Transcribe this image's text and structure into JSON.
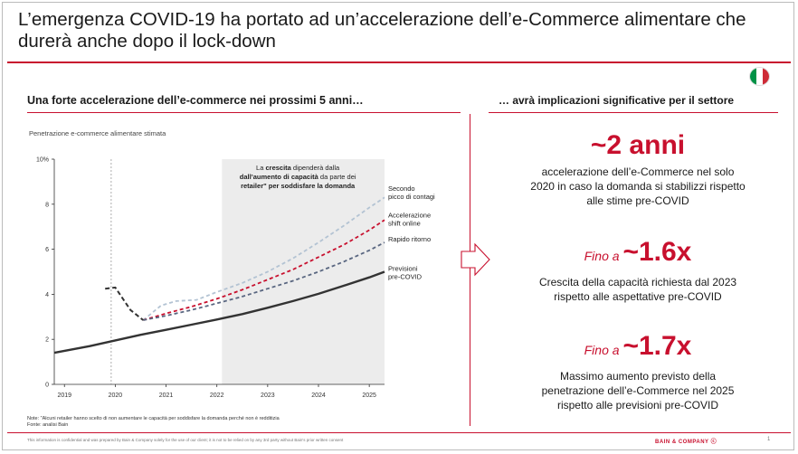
{
  "title": "L’emergenza COVID-19 ha portato ad un’accelerazione dell’e-Commerce alimentare che durerà anche dopo il lock-down",
  "flag_colors": [
    "#009246",
    "#ffffff",
    "#ce2b37"
  ],
  "left_heading": "Una forte accelerazione dell’e-commerce nei prossimi 5 anni…",
  "right_heading": "… avrà implicazioni significative per il settore",
  "chart_subtitle": "Penetrazione e-commerce alimentare stimata",
  "chart_data": {
    "type": "line",
    "ylim": [
      0,
      10
    ],
    "yticks": [
      "0",
      "2",
      "4",
      "6",
      "8",
      "10%"
    ],
    "xlim": [
      2018.8,
      2025.3
    ],
    "xticks": [
      2019,
      2020,
      2021,
      2022,
      2023,
      2024,
      2025
    ],
    "xtick_labels": [
      "2019",
      "2020",
      "2021",
      "2022",
      "2023",
      "2024",
      "2025"
    ],
    "vline_x": 2019.92,
    "shaded_range": [
      2022.1,
      2025.3
    ],
    "shaded_note": {
      "line1_pre": "La ",
      "line1_bold": "crescita",
      "line1_post": " dipenderà dalla",
      "line2_bold": "dall’aumento di capacità",
      "line2_post": " da parte dei",
      "line3_bold": "retailer\" per soddisfare la domanda"
    },
    "colors": {
      "spike": "#333333",
      "shade": "#ececec"
    },
    "spike": {
      "x": [
        2019.8,
        2020.0,
        2020.3,
        2020.55
      ],
      "y": [
        4.25,
        4.3,
        3.3,
        2.85
      ]
    },
    "series": [
      {
        "name": "Previsioni pre-COVID",
        "style": "solid",
        "color": "#333333",
        "x": [
          2018.8,
          2019.5,
          2020.0,
          2020.5,
          2021.0,
          2021.5,
          2022.0,
          2022.5,
          2023.0,
          2023.5,
          2024.0,
          2024.5,
          2025.0,
          2025.3
        ],
        "y": [
          1.4,
          1.7,
          1.95,
          2.2,
          2.42,
          2.65,
          2.88,
          3.12,
          3.4,
          3.7,
          4.02,
          4.38,
          4.75,
          5.0
        ]
      },
      {
        "name": "Rapido ritorno",
        "style": "dashed",
        "color": "#596680",
        "x": [
          2020.55,
          2021.0,
          2021.5,
          2022.0,
          2022.5,
          2023.0,
          2023.5,
          2024.0,
          2024.5,
          2025.0,
          2025.3
        ],
        "y": [
          2.85,
          3.05,
          3.3,
          3.6,
          3.9,
          4.25,
          4.6,
          5.0,
          5.45,
          5.95,
          6.3
        ]
      },
      {
        "name": "Accelerazione shift online",
        "style": "dashed",
        "color": "#c8102e",
        "x": [
          2020.55,
          2021.0,
          2021.5,
          2022.0,
          2022.5,
          2023.0,
          2023.5,
          2024.0,
          2024.5,
          2025.0,
          2025.3
        ],
        "y": [
          2.85,
          3.15,
          3.45,
          3.8,
          4.2,
          4.65,
          5.1,
          5.65,
          6.2,
          6.85,
          7.3
        ]
      },
      {
        "name": "Secondo picco di contagi",
        "style": "dashed",
        "color": "#b3c3d3",
        "x": [
          2020.55,
          2020.9,
          2021.2,
          2021.6,
          2022.0,
          2022.5,
          2023.0,
          2023.5,
          2024.0,
          2024.5,
          2025.0,
          2025.3
        ],
        "y": [
          2.85,
          3.5,
          3.7,
          3.75,
          4.1,
          4.5,
          5.0,
          5.6,
          6.3,
          7.05,
          7.85,
          8.3
        ]
      }
    ],
    "legend_labels": [
      {
        "lines": [
          "Secondo",
          "picco di contagi"
        ],
        "y": 8.6
      },
      {
        "lines": [
          "Accelerazione",
          "shift online"
        ],
        "y": 7.4
      },
      {
        "lines": [
          "Rapido ritorno"
        ],
        "y": 6.35
      },
      {
        "lines": [
          "Previsioni",
          "pre-COVID"
        ],
        "y": 5.05
      }
    ]
  },
  "stats": [
    {
      "prefix": "",
      "value": "~2 anni",
      "desc": [
        "accelerazione dell’e-Commerce  nel solo",
        "2020 in caso la domanda  si stabilizzi rispetto",
        "alle stime pre-COVID"
      ]
    },
    {
      "prefix": "Fino a ",
      "value": "~1.6x",
      "desc": [
        "Crescita della capacità richiesta dal 2023",
        "rispetto alle aspettative pre-COVID"
      ]
    },
    {
      "prefix": "Fino a ",
      "value": "~1.7x",
      "desc": [
        "Massimo aumento previsto della",
        "penetrazione dell’e-Commerce  nel 2025",
        "rispetto alle previsioni pre-COVID"
      ]
    }
  ],
  "note_line1": "Note: \"Alcuni retailer hanno scelto di non aumentare le capacità per soddisfare la domanda perché non è redditizia",
  "note_line2": "Fonte: analisi Bain",
  "footer": "This information is confidential and was prepared by Bain & Company solely for the use of our client; it is not to be relied on by any 3rd party without Bain's prior written consent",
  "brand": "BAIN & COMPANY ⓒ",
  "page_number": "1"
}
